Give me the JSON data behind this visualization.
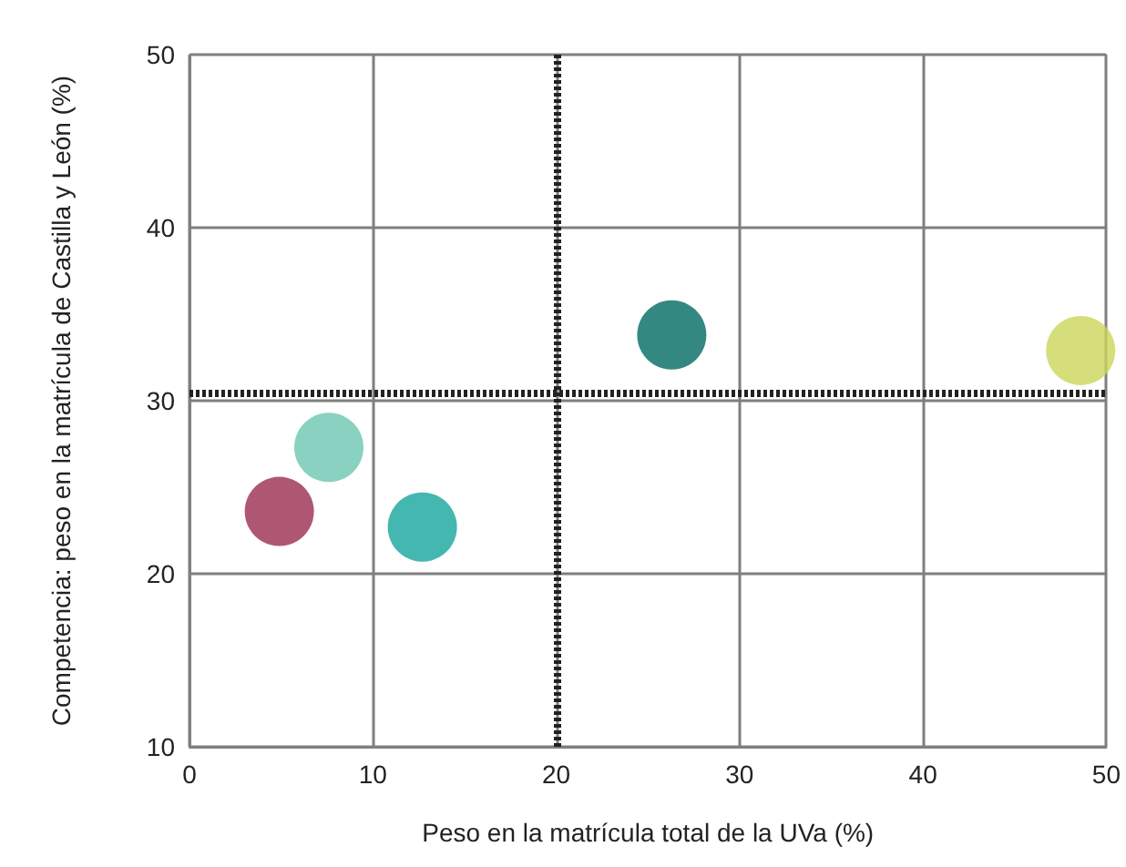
{
  "chart_data": {
    "type": "scatter",
    "xlabel": "Peso en la matrícula total de la UVa (%)",
    "ylabel": "Competencia: peso en la matrícula de Castilla y León (%)",
    "x": [
      4.9,
      7.6,
      12.7,
      26.3,
      48.6
    ],
    "values": [
      23.6,
      27.3,
      22.7,
      33.8,
      32.9
    ],
    "colors": [
      "#9b2d4f",
      "#6cc5b0",
      "#17a59d",
      "#006b63",
      "#ccd45a"
    ],
    "xlim": [
      0,
      50
    ],
    "xticks": [
      0,
      10,
      20,
      30,
      40,
      50
    ],
    "ylim": [
      10,
      50
    ],
    "yticks": [
      10,
      20,
      30,
      40,
      50
    ],
    "grid": true,
    "marker": "circle",
    "ref_lines": [
      {
        "axis": "x",
        "value": 20,
        "color": "#222222",
        "line_style": "dotted"
      },
      {
        "axis": "y",
        "value": 30.5,
        "color": "#222222",
        "line_style": "dotted"
      }
    ]
  }
}
